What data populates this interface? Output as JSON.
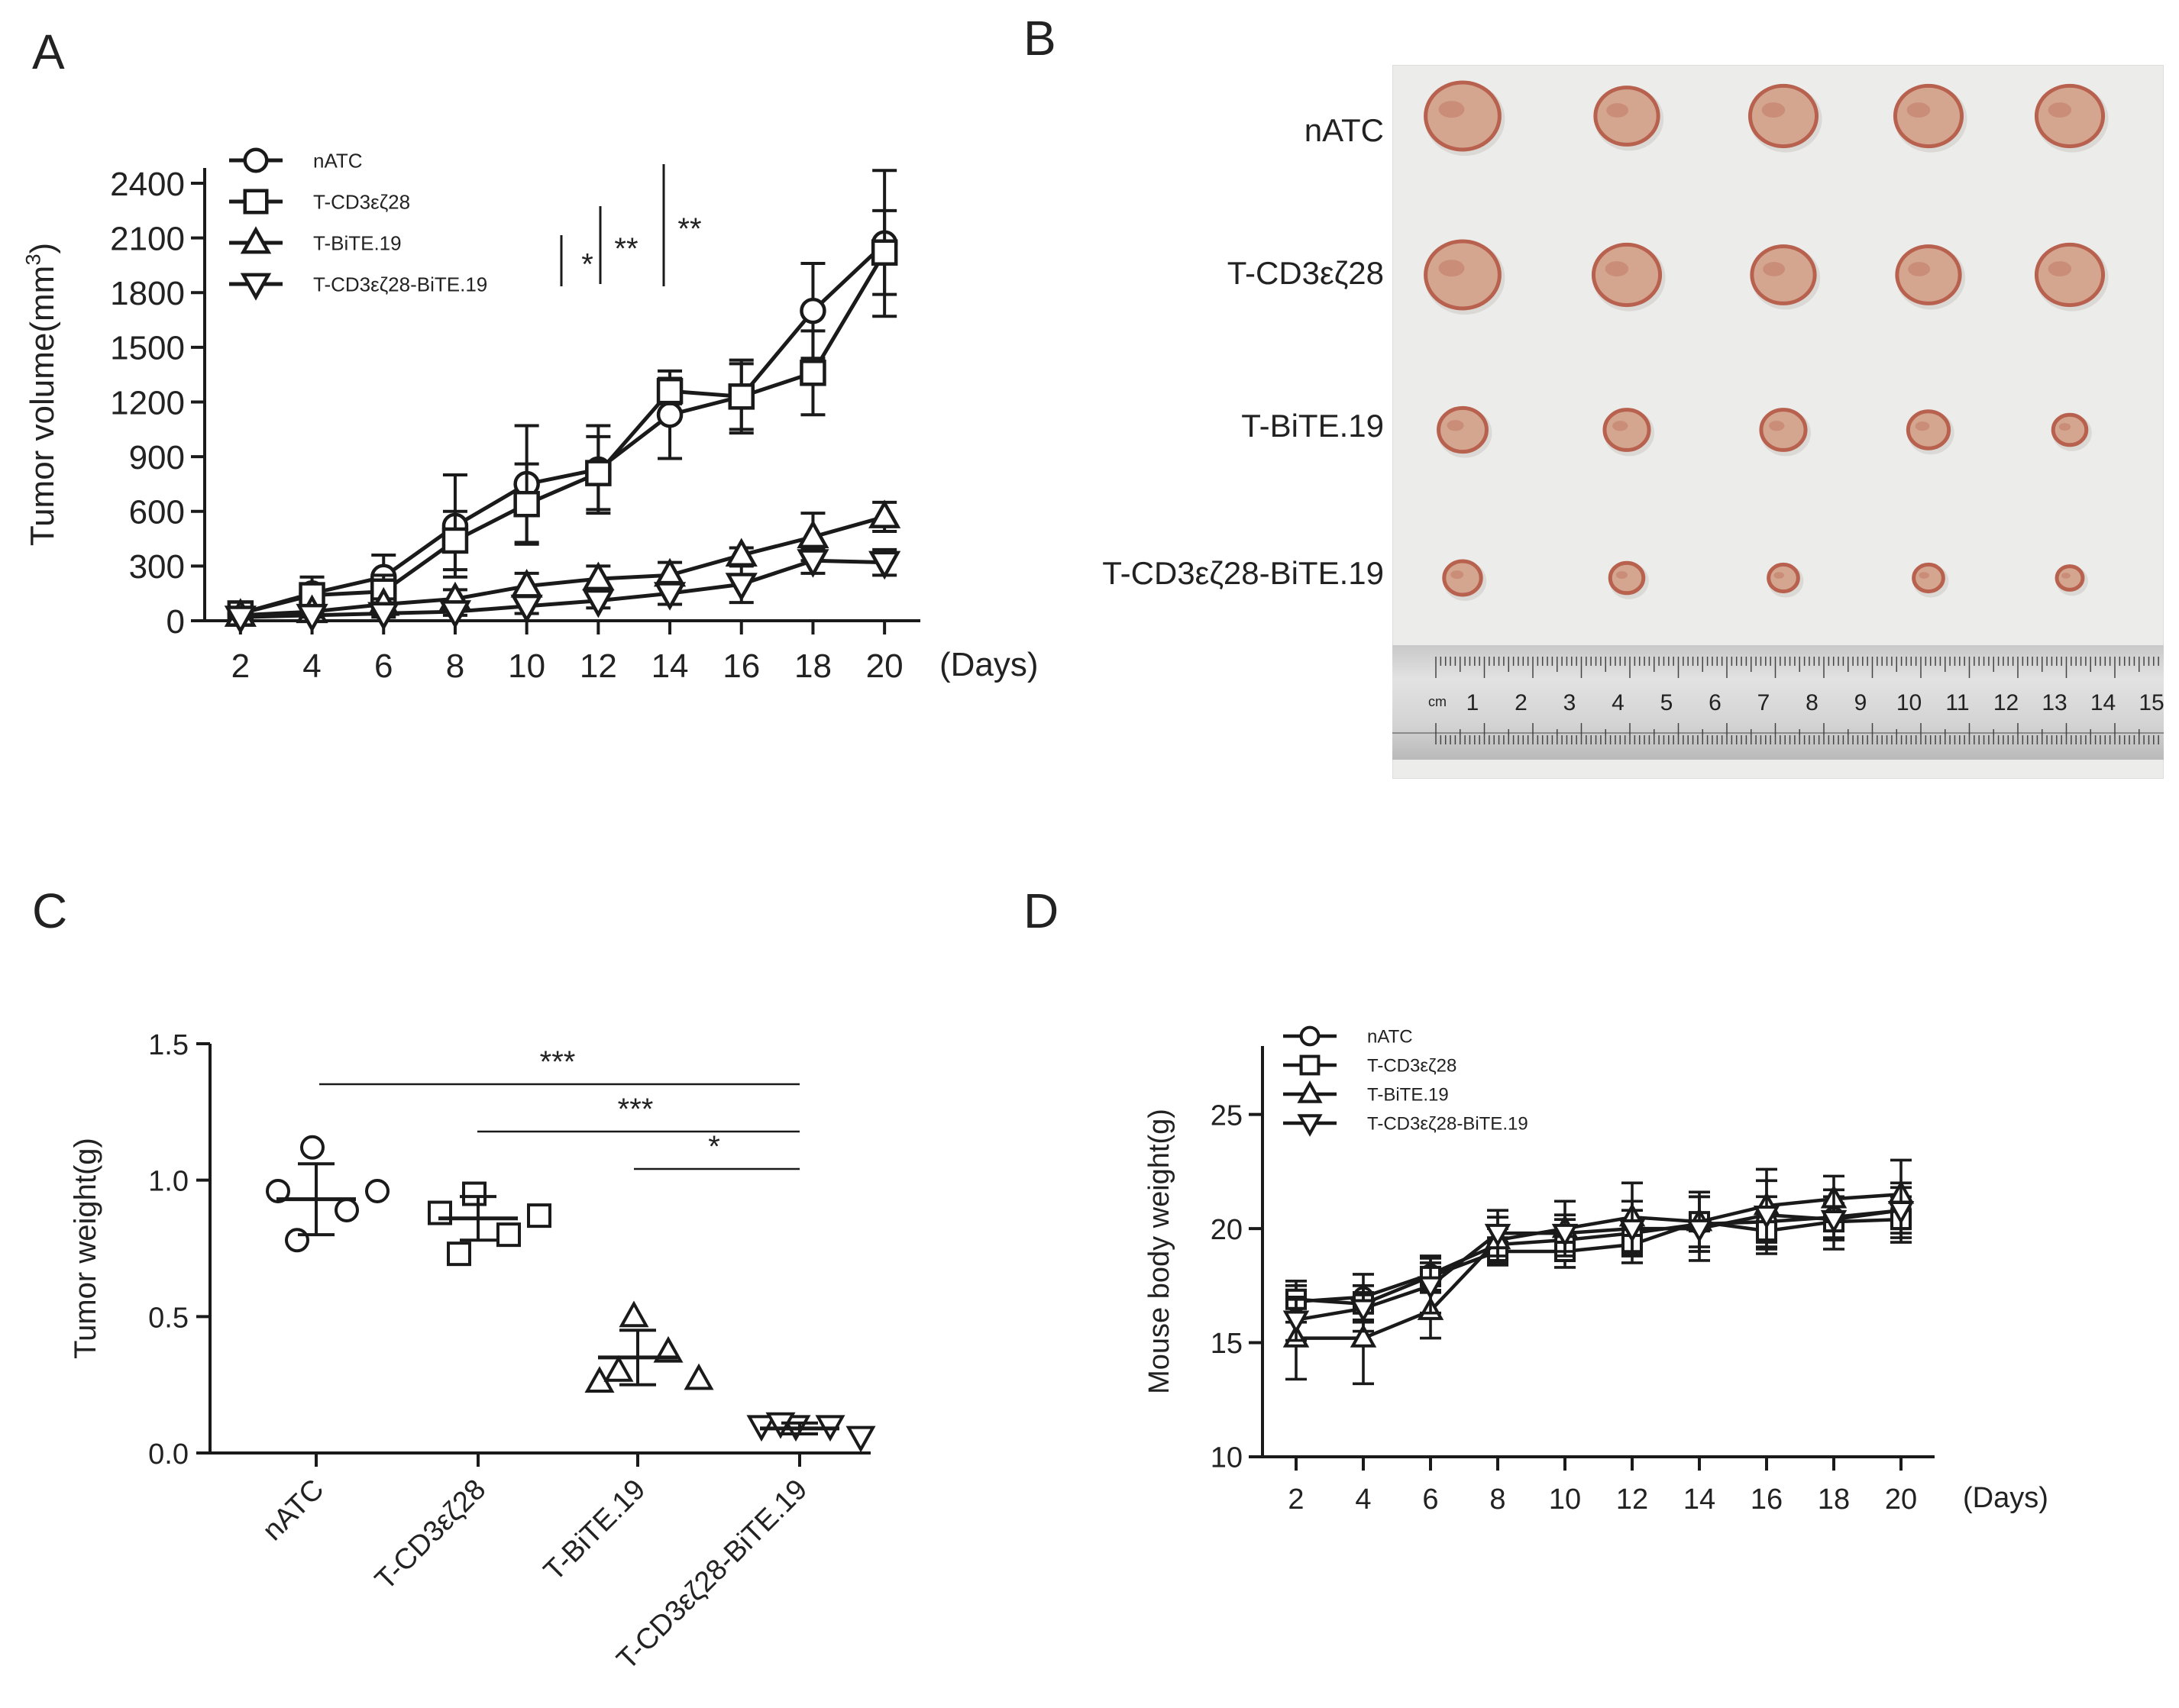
{
  "panel_letters": [
    "A",
    "B",
    "C",
    "D"
  ],
  "groups": [
    "nATC",
    "T-CD3εζ28",
    "T-BiTE.19",
    "T-CD3εζ28-BiTE.19"
  ],
  "colors": {
    "ink": "#1a1a1a",
    "tumor": "#d4a58f",
    "tumor_dark": "#b7614e",
    "photo_bg": "#ececea"
  },
  "chart_data": [
    {
      "panel": "A",
      "type": "line",
      "title": "",
      "xlabel": "(Days)",
      "ylabel": "Tumor volume(mm³)",
      "ylabel_main": "Tumor volume(mm",
      "ylabel_sup": "3",
      "ylabel_end": ")",
      "x": [
        2,
        4,
        6,
        8,
        10,
        12,
        14,
        16,
        18,
        20
      ],
      "xlim": [
        1,
        21
      ],
      "ylim": [
        0,
        2400
      ],
      "yticks": [
        0,
        300,
        600,
        900,
        1200,
        1500,
        1800,
        2100,
        2400
      ],
      "legend": [
        "nATC",
        "T-CD3εζ28",
        "T-BiTE.19",
        "T-CD3εζ28-BiTE.19"
      ],
      "legend_position": "top-left",
      "markers": [
        "circle",
        "square",
        "triangle-up",
        "triangle-down"
      ],
      "series": [
        {
          "name": "nATC",
          "values": [
            40,
            150,
            240,
            520,
            750,
            830,
            1130,
            1230,
            1700,
            2070
          ],
          "errors": [
            20,
            90,
            120,
            280,
            320,
            240,
            240,
            180,
            260,
            400
          ]
        },
        {
          "name": "T-CD3εζ28",
          "values": [
            40,
            140,
            160,
            440,
            640,
            810,
            1260,
            1230,
            1360,
            2020
          ],
          "errors": [
            20,
            60,
            90,
            160,
            220,
            200,
            70,
            200,
            230,
            230
          ]
        },
        {
          "name": "T-BiTE.19",
          "values": [
            30,
            50,
            90,
            120,
            190,
            230,
            250,
            360,
            460,
            570
          ],
          "errors": [
            10,
            30,
            30,
            50,
            70,
            70,
            70,
            40,
            130,
            80
          ]
        },
        {
          "name": "T-CD3εζ28-BiTE.19",
          "values": [
            20,
            30,
            40,
            50,
            80,
            110,
            150,
            200,
            330,
            320
          ],
          "errors": [
            10,
            10,
            20,
            20,
            40,
            40,
            60,
            100,
            70,
            70
          ]
        }
      ],
      "significance": [
        "*",
        "**",
        "**"
      ]
    },
    {
      "panel": "C",
      "type": "scatter",
      "title": "",
      "xlabel": "",
      "ylabel": "Tumor weight(g)",
      "categories": [
        "nATC",
        "T-CD3εζ28",
        "T-BiTE.19",
        "T-CD3εζ28-BiTE.19"
      ],
      "ylim": [
        0,
        1.5
      ],
      "yticks": [
        "0.0",
        "0.5",
        "1.0",
        "1.5"
      ],
      "series": [
        {
          "name": "nATC",
          "points": [
            0.96,
            1.12,
            0.89,
            0.78,
            0.96
          ],
          "mean": 0.93,
          "sd": 0.13
        },
        {
          "name": "T-CD3εζ28",
          "points": [
            0.88,
            0.95,
            0.8,
            0.73,
            0.87
          ],
          "mean": 0.86,
          "sd": 0.08
        },
        {
          "name": "T-BiTE.19",
          "points": [
            0.26,
            0.5,
            0.37,
            0.3,
            0.27
          ],
          "mean": 0.35,
          "sd": 0.1
        },
        {
          "name": "T-CD3εζ28-BiTE.19",
          "points": [
            0.1,
            0.1,
            0.1,
            0.11,
            0.06
          ],
          "mean": 0.09,
          "sd": 0.02
        }
      ],
      "significance": [
        "***",
        "***",
        "*"
      ]
    },
    {
      "panel": "D",
      "type": "line",
      "title": "",
      "xlabel": "(Days)",
      "ylabel": "Mouse body weight(g)",
      "x": [
        2,
        4,
        6,
        8,
        10,
        12,
        14,
        16,
        18,
        20
      ],
      "xlim": [
        1,
        21
      ],
      "ylim": [
        10,
        28
      ],
      "yticks": [
        10,
        15,
        20,
        25
      ],
      "legend": [
        "nATC",
        "T-CD3εζ28",
        "T-BiTE.19",
        "T-CD3εζ28-BiTE.19"
      ],
      "legend_position": "top-left",
      "markers": [
        "circle",
        "square",
        "triangle-up",
        "triangle-down"
      ],
      "series": [
        {
          "name": "nATC",
          "values": [
            16.8,
            17.0,
            18.0,
            19.3,
            19.5,
            19.8,
            20.2,
            20.3,
            20.5,
            20.8
          ],
          "errors": [
            0.9,
            1.0,
            0.8,
            0.7,
            0.9,
            1.0,
            1.2,
            1.1,
            0.9,
            1.0
          ]
        },
        {
          "name": "T-CD3εζ28",
          "values": [
            16.9,
            16.7,
            17.9,
            19.0,
            19.0,
            19.3,
            20.3,
            19.9,
            20.3,
            20.4
          ],
          "errors": [
            0.6,
            0.8,
            0.6,
            0.6,
            0.7,
            0.8,
            1.1,
            1.0,
            0.8,
            1.0
          ]
        },
        {
          "name": "T-BiTE.19",
          "values": [
            15.2,
            15.2,
            16.4,
            19.5,
            20.0,
            20.5,
            20.3,
            21.0,
            21.3,
            21.5
          ],
          "errors": [
            1.8,
            2.0,
            1.2,
            1.0,
            1.2,
            1.5,
            1.3,
            1.6,
            1.0,
            1.5
          ]
        },
        {
          "name": "T-CD3εζ28-BiTE.19",
          "values": [
            16.0,
            16.5,
            17.5,
            19.8,
            19.8,
            20.0,
            20.0,
            20.6,
            20.4,
            20.8
          ],
          "errors": [
            0.9,
            1.0,
            1.2,
            1.0,
            0.8,
            1.2,
            1.4,
            1.5,
            1.3,
            1.2
          ]
        }
      ]
    }
  ],
  "photo": {
    "rows": [
      "nATC",
      "T-CD3εζ28",
      "T-BiTE.19",
      "T-CD3εζ28-BiTE.19"
    ],
    "tumor_sizes": [
      [
        1.0,
        0.85,
        0.9,
        0.9,
        0.9
      ],
      [
        1.0,
        0.9,
        0.85,
        0.85,
        0.9
      ],
      [
        0.65,
        0.6,
        0.6,
        0.55,
        0.45
      ],
      [
        0.5,
        0.45,
        0.4,
        0.4,
        0.35
      ]
    ],
    "ruler_numbers": [
      "1",
      "2",
      "3",
      "4",
      "5",
      "6",
      "7",
      "8",
      "9",
      "10",
      "11",
      "12",
      "13",
      "14",
      "15"
    ],
    "ruler_unit": "cm"
  }
}
